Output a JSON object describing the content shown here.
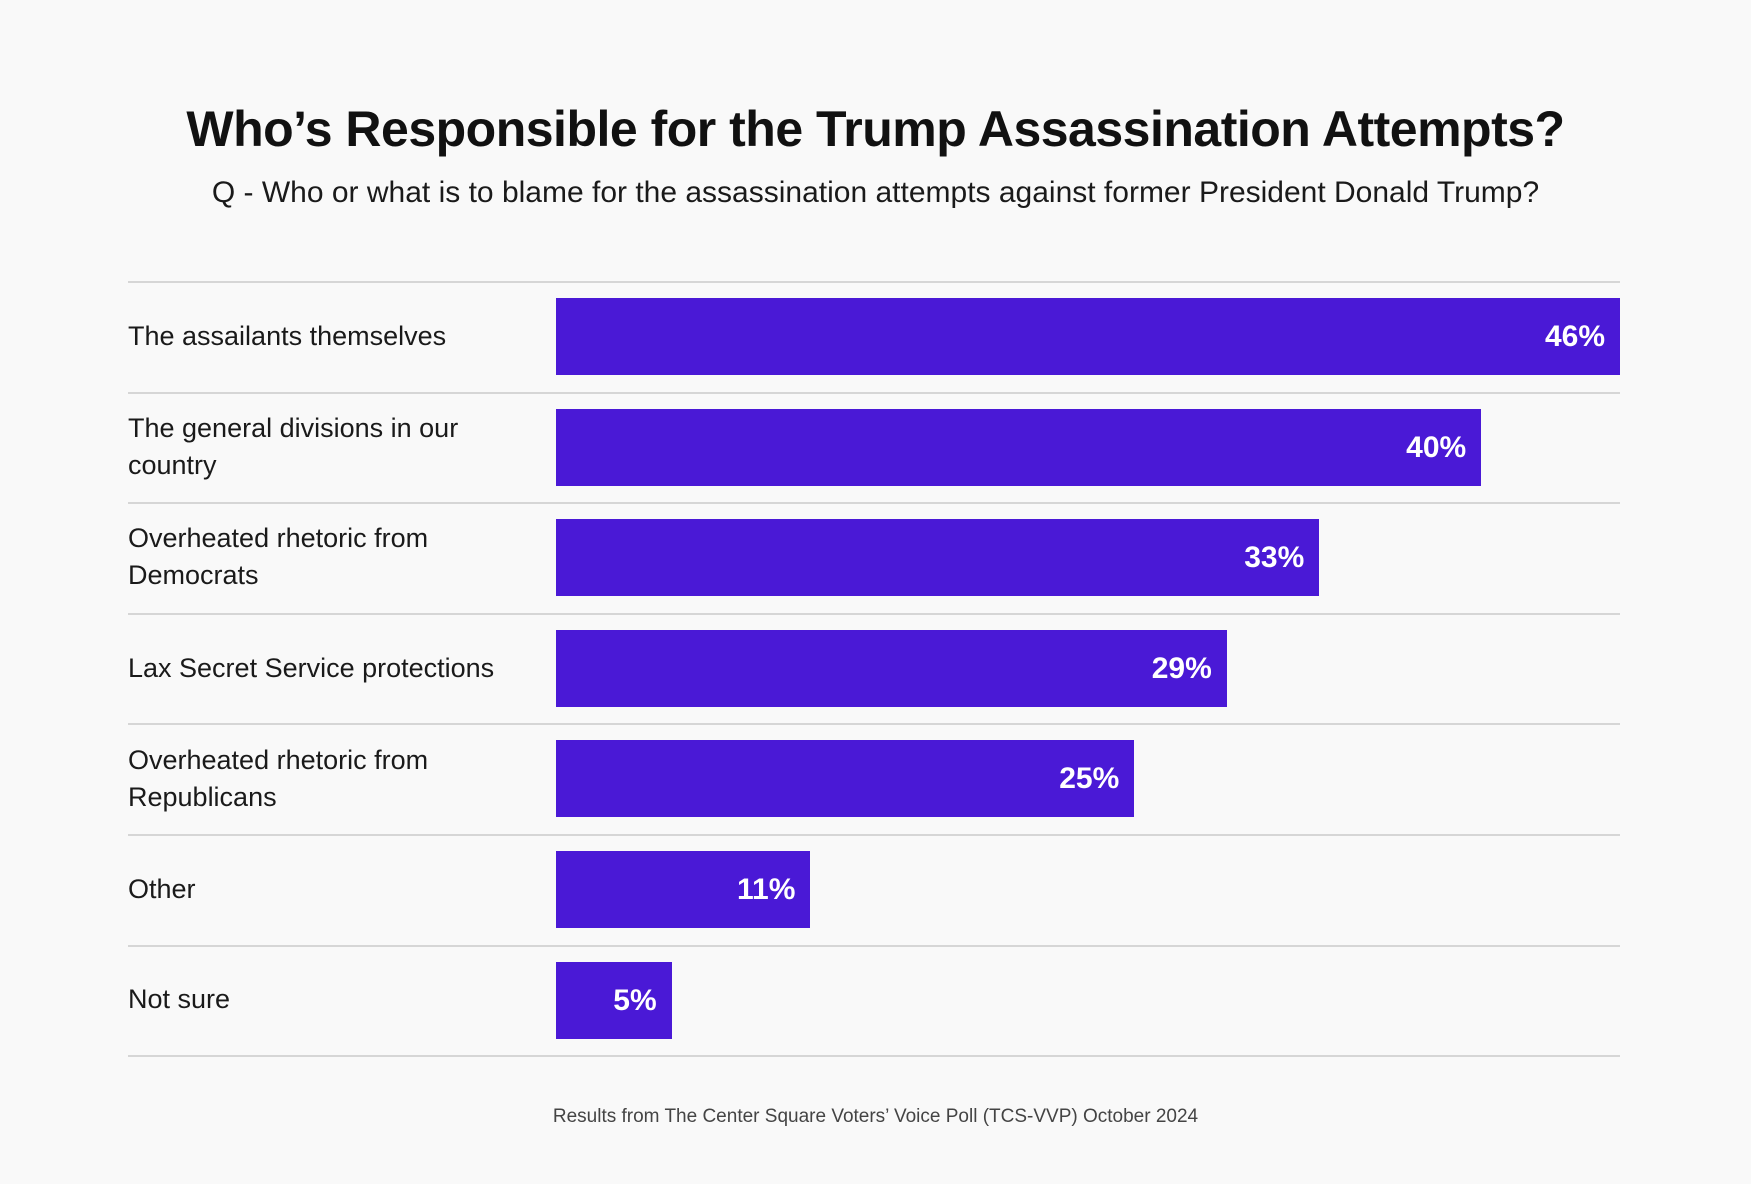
{
  "title": "Who’s Responsible for the Trump Assassination Attempts?",
  "subtitle": "Q - Who or what is to blame for the assassination attempts against former President Donald Trump?",
  "footer": "Results from The Center Square Voters’ Voice Poll (TCS-VVP) October 2024",
  "colors": {
    "bar": "#4a19d6",
    "background": "#f9f9f9"
  },
  "chart_data": {
    "type": "bar",
    "orientation": "horizontal",
    "categories": [
      "The assailants themselves",
      "The general divisions in our country",
      "Overheated rhetoric from Democrats",
      "Lax Secret Service protections",
      "Overheated rhetoric from Republicans",
      "Other",
      "Not sure"
    ],
    "values": [
      46,
      40,
      33,
      29,
      25,
      11,
      5
    ],
    "value_labels": [
      "46%",
      "40%",
      "33%",
      "29%",
      "25%",
      "11%",
      "5%"
    ],
    "unit": "%",
    "xlim": [
      0,
      46
    ],
    "grid": false
  }
}
